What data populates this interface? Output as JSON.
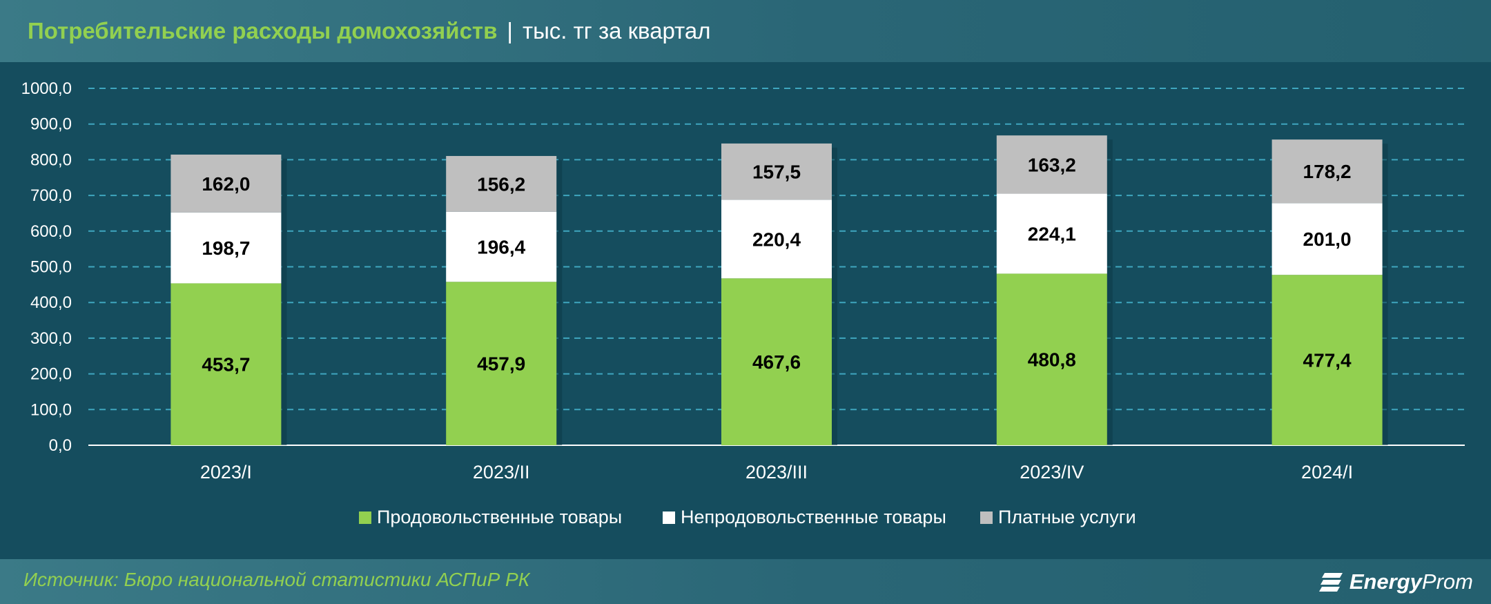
{
  "header": {
    "title": "Потребительские расходы домохозяйств",
    "separator": "|",
    "subtitle": "тыс. тг за квартал"
  },
  "colors": {
    "background": "#154d5e",
    "food": "#92d050",
    "nonfood": "#ffffff",
    "services": "#bfbfbf",
    "title": "#92d050",
    "grid": "#3fa6bf"
  },
  "chart_data": {
    "type": "bar",
    "stacked": true,
    "categories": [
      "2023/I",
      "2023/II",
      "2023/III",
      "2023/IV",
      "2024/I"
    ],
    "series": [
      {
        "name": "Продовольственные товары",
        "values": [
          453.7,
          457.9,
          467.6,
          480.8,
          477.4
        ],
        "color": "#92d050"
      },
      {
        "name": "Непродовольственные товары",
        "values": [
          198.7,
          196.4,
          220.4,
          224.1,
          201.0
        ],
        "color": "#ffffff"
      },
      {
        "name": "Платные услуги",
        "values": [
          162.0,
          156.2,
          157.5,
          163.2,
          178.2
        ],
        "color": "#bfbfbf"
      }
    ],
    "ylim": [
      0,
      1000
    ],
    "yticks": [
      "0,0",
      "100,0",
      "200,0",
      "300,0",
      "400,0",
      "500,0",
      "600,0",
      "700,0",
      "800,0",
      "900,0",
      "1000,0"
    ],
    "grid": true,
    "legend_position": "bottom-center"
  },
  "footer": {
    "source": "Источник: Бюро национальной статистики АСПиР РК",
    "logo_bold": "Energy",
    "logo_thin": "Prom"
  },
  "icons": {
    "logo": "energyprom-logo-icon"
  }
}
